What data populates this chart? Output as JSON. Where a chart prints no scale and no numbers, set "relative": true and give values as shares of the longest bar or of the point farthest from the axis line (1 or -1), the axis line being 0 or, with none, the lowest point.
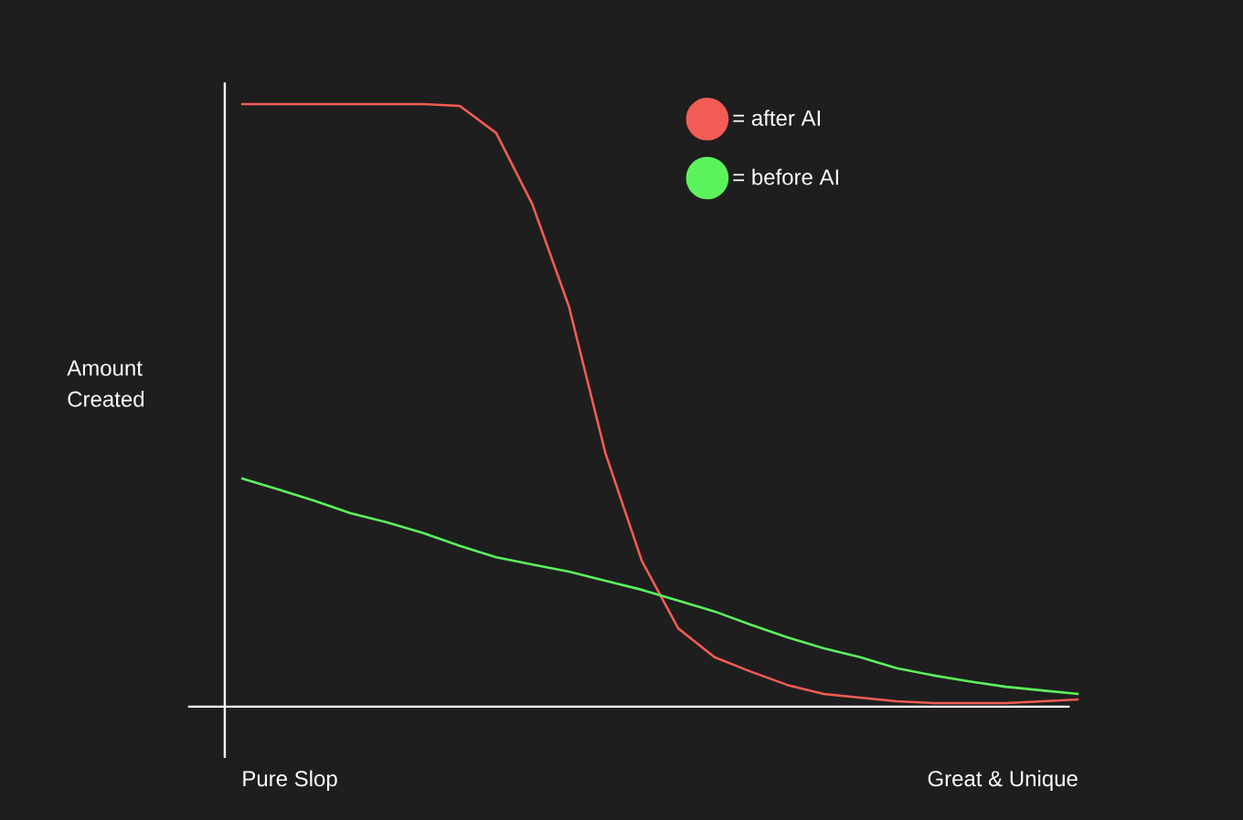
{
  "chart_data": {
    "type": "line",
    "relative": true,
    "ylabel": "Amount Created",
    "legend": "top right",
    "annotations": [
      "Pure Slop",
      "Great & Unique"
    ],
    "categories": [
      null,
      null,
      null,
      null,
      null,
      null,
      null,
      null,
      null,
      null,
      null,
      null,
      null,
      null,
      null,
      null,
      null,
      null,
      null,
      null,
      null,
      null,
      null,
      null
    ],
    "series": [
      {
        "name": "= after AI",
        "color": "#f25c54",
        "values": [
          1.0,
          1.0,
          1.0,
          1.0,
          1.0,
          1.0,
          0.997,
          0.952,
          0.833,
          0.664,
          0.421,
          0.242,
          0.13,
          0.082,
          0.058,
          0.036,
          0.021,
          0.015,
          0.009,
          0.006,
          0.006,
          0.006,
          0.009,
          0.012
        ]
      },
      {
        "name": "= before AI",
        "color": "#5cf25c",
        "values": [
          0.379,
          0.361,
          0.342,
          0.321,
          0.306,
          0.288,
          0.267,
          0.248,
          0.236,
          0.224,
          0.209,
          0.194,
          0.176,
          0.158,
          0.136,
          0.115,
          0.097,
          0.082,
          0.064,
          0.052,
          0.042,
          0.033,
          0.027,
          0.021
        ]
      }
    ]
  }
}
